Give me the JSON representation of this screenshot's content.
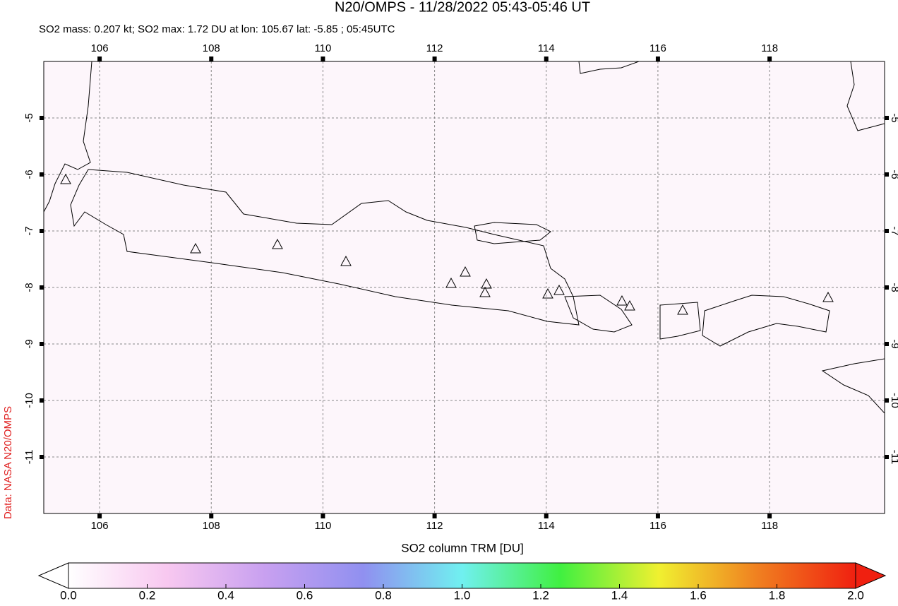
{
  "chart_data": {
    "type": "map",
    "title": "N20/OMPS - 11/28/2022 05:43-05:46 UT",
    "subtitle": "SO2 mass: 0.207 kt; SO2 max: 1.72 DU at lon: 105.67 lat: -5.85 ; 05:45UTC",
    "credit": "Data: NASA N20/OMPS",
    "xlim": [
      105.0,
      120.06
    ],
    "ylim": [
      -12.0,
      -4.0
    ],
    "xticks": [
      106,
      108,
      110,
      112,
      114,
      116,
      118
    ],
    "yticks": [
      -5,
      -6,
      -7,
      -8,
      -9,
      -10,
      -11
    ],
    "grid": true,
    "colorbar": {
      "label": "SO2 column TRM [DU]",
      "clim": [
        0,
        2
      ],
      "colors": [
        "#ffffff",
        "#f8c8f0",
        "#c8a0f0",
        "#9090f0",
        "#70f0f0",
        "#40f040",
        "#f0f030",
        "#f08020",
        "#f02010"
      ],
      "ticks": [
        {
          "value": 0,
          "label": "0.0"
        },
        {
          "value": 0.2,
          "label": "0.2"
        },
        {
          "value": 0.4,
          "label": "0.4"
        },
        {
          "value": 0.6,
          "label": "0.6"
        },
        {
          "value": 0.8,
          "label": "0.8"
        },
        {
          "value": 1.0,
          "label": "1.0"
        },
        {
          "value": 1.2,
          "label": "1.2"
        },
        {
          "value": 1.4,
          "label": "1.4"
        },
        {
          "value": 1.6,
          "label": "1.6"
        },
        {
          "value": 1.8,
          "label": "1.8"
        },
        {
          "value": 2.0,
          "label": "2.0"
        }
      ]
    }
  }
}
